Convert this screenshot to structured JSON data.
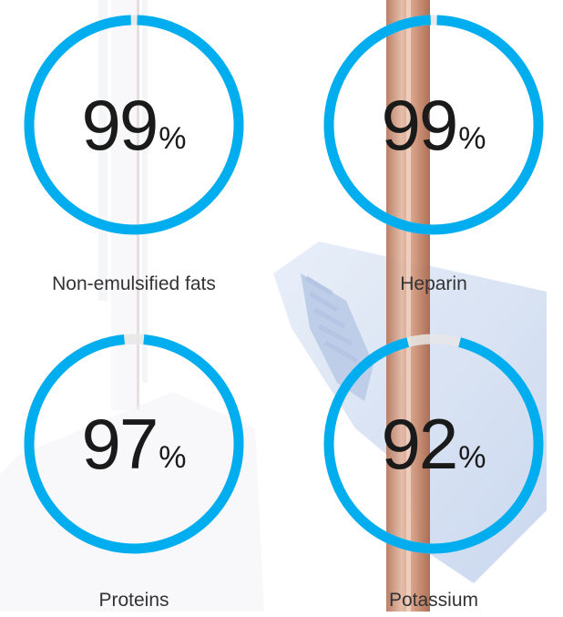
{
  "chart_data": {
    "type": "donut",
    "unit": "%",
    "ring_color": "#00aeef",
    "track_color": "#e6e6e6",
    "items": [
      {
        "label": "Non-emulsified fats",
        "value": 99
      },
      {
        "label": "Heparin",
        "value": 99
      },
      {
        "label": "Proteins",
        "value": 97
      },
      {
        "label": "Potassium",
        "value": 92
      }
    ]
  }
}
